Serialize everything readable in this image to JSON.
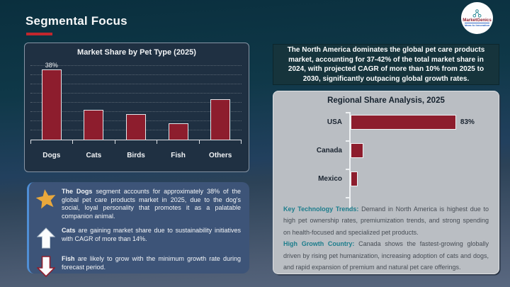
{
  "slide": {
    "title": "Segmental Focus",
    "logo": {
      "name": "MarketGenics",
      "tagline": "Ideas to Innovation"
    }
  },
  "left": {
    "callouts": [
      {
        "icon": "star-icon",
        "lead": "The Dogs",
        "text": "segment accounts for approximately 38% of the global pet care products market in 2025, due to the dog's social, loyal personality that promotes it as a palatable companion animal."
      },
      {
        "icon": "up-arrow-icon",
        "lead": "Cats",
        "text": "are gaining market share due to sustainability initiatives with CAGR of more than 14%."
      },
      {
        "icon": "down-arrow-icon",
        "lead": "Fish",
        "text": "are likely to grow with the minimum growth rate during forecast period."
      }
    ]
  },
  "right": {
    "highlight": "The North America dominates the global pet care products market, accounting for 37-42% of the total market share in 2024, with projected CAGR of more than 10% from 2025 to 2030, significantly outpacing global growth rates.",
    "paragraphs": [
      {
        "lead": "Key Technology Trends:",
        "text": "Demand in North America is highest due to high pet ownership rates, premiumization trends, and strong spending on health-focused and specialized pet products."
      },
      {
        "lead": "High Growth Country:",
        "text": "Canada shows the fastest-growing globally driven by rising pet humanization, increasing adoption of cats and dogs, and rapid expansion of premium and natural pet care offerings."
      }
    ]
  },
  "chart_data": [
    {
      "type": "bar",
      "title": "Market Share by Pet Type (2025)",
      "categories": [
        "Dogs",
        "Cats",
        "Birds",
        "Fish",
        "Others"
      ],
      "values": [
        38,
        16,
        14,
        9,
        22
      ],
      "data_labels": [
        "38%",
        "",
        "",
        "",
        ""
      ],
      "xlabel": "",
      "ylabel": "",
      "ylim": [
        0,
        40
      ],
      "grid": true,
      "grid_step": 5,
      "legend": false,
      "bar_color": "#8d1d2d"
    },
    {
      "type": "bar-horizontal",
      "title": "Regional Share Analysis, 2025",
      "categories": [
        "USA",
        "Canada",
        "Mexico"
      ],
      "values": [
        83,
        10,
        6
      ],
      "data_labels": [
        "83%",
        "",
        ""
      ],
      "xlabel": "",
      "ylabel": "",
      "xlim": [
        0,
        100
      ],
      "grid": false,
      "legend": false,
      "bar_color": "#8d1d2d"
    }
  ],
  "colors": {
    "accent_red": "#c1272d",
    "bar_red": "#8d1d2d",
    "callout_panel_blue": "#3d5478",
    "callout_border_blue": "#4f8fd6",
    "highlight_teal": "#16343c",
    "gray_panel": "#babec3",
    "teal_heading": "#1c7d8c",
    "star_gold": "#e9a83c"
  }
}
